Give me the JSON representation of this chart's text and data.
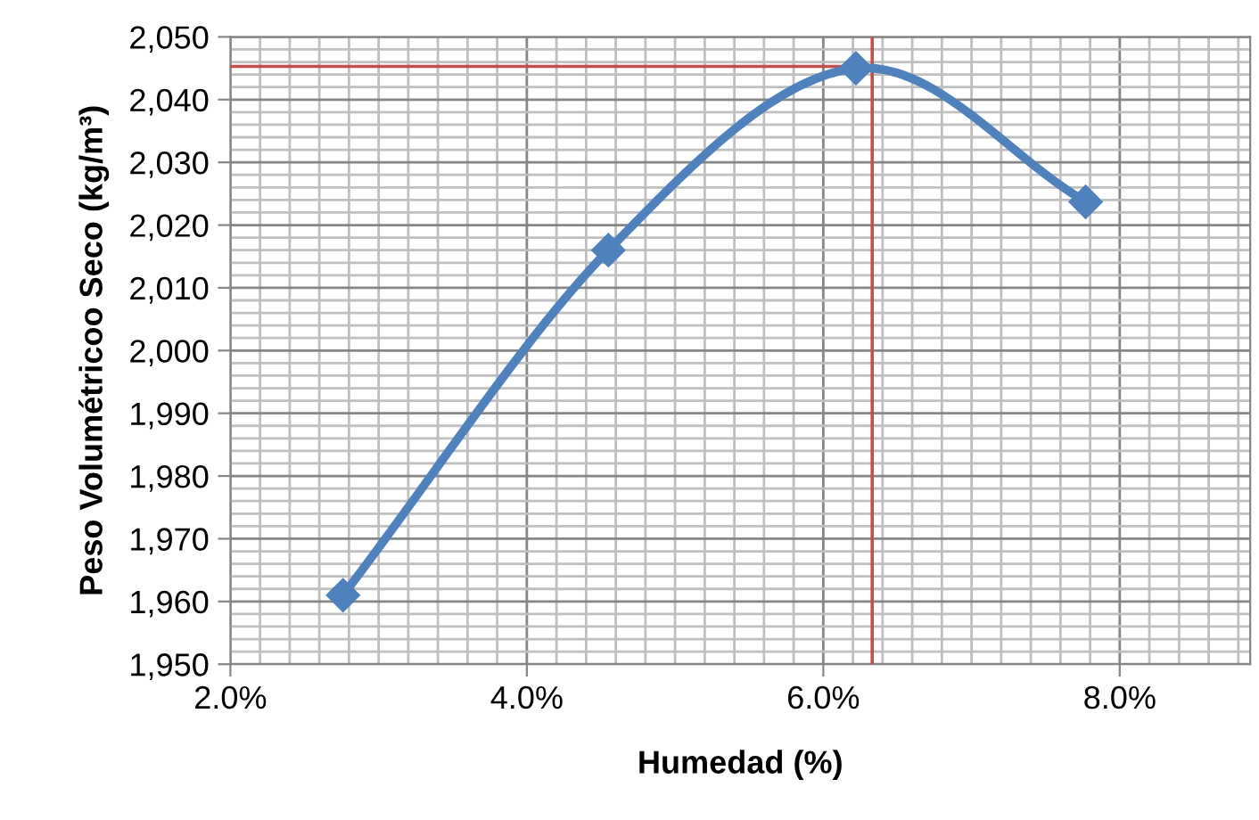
{
  "chart_data": {
    "type": "line",
    "xlabel": "Humedad (%)",
    "ylabel": "Peso Volumétricoo Seco (kg/m³)",
    "x": [
      0.0276,
      0.0455,
      0.0622,
      0.0777
    ],
    "series": [
      {
        "color": "#4f81bd",
        "values": [
          1961,
          2016,
          2045,
          2023.7
        ]
      }
    ],
    "marker": "diamond",
    "line_style": "solid",
    "xlim": [
      0.02,
      0.0888
    ],
    "ylim": [
      1950,
      2050
    ],
    "xticks": [
      {
        "value": 0.02,
        "label": "2.0%"
      },
      {
        "value": 0.022,
        "label": null
      },
      {
        "value": 0.024,
        "label": null
      },
      {
        "value": 0.026,
        "label": null
      },
      {
        "value": 0.028,
        "label": null
      },
      {
        "value": 0.03,
        "label": null
      },
      {
        "value": 0.032,
        "label": null
      },
      {
        "value": 0.034,
        "label": null
      },
      {
        "value": 0.036,
        "label": null
      },
      {
        "value": 0.038,
        "label": null
      },
      {
        "value": 0.04,
        "label": "4.0%"
      },
      {
        "value": 0.042,
        "label": null
      },
      {
        "value": 0.044,
        "label": null
      },
      {
        "value": 0.046,
        "label": null
      },
      {
        "value": 0.048,
        "label": null
      },
      {
        "value": 0.05,
        "label": null
      },
      {
        "value": 0.052,
        "label": null
      },
      {
        "value": 0.054,
        "label": null
      },
      {
        "value": 0.056,
        "label": null
      },
      {
        "value": 0.058,
        "label": null
      },
      {
        "value": 0.06,
        "label": "6.0%"
      },
      {
        "value": 0.062,
        "label": null
      },
      {
        "value": 0.064,
        "label": null
      },
      {
        "value": 0.066,
        "label": null
      },
      {
        "value": 0.068,
        "label": null
      },
      {
        "value": 0.07,
        "label": null
      },
      {
        "value": 0.072,
        "label": null
      },
      {
        "value": 0.074,
        "label": null
      },
      {
        "value": 0.076,
        "label": null
      },
      {
        "value": 0.078,
        "label": null
      },
      {
        "value": 0.08,
        "label": "8.0%"
      },
      {
        "value": 0.082,
        "label": null
      },
      {
        "value": 0.084,
        "label": null
      },
      {
        "value": 0.086,
        "label": null
      },
      {
        "value": 0.088,
        "label": null
      }
    ],
    "yticks": [
      {
        "value": 1950,
        "label": "1,950"
      },
      {
        "value": 1960,
        "label": "1,960"
      },
      {
        "value": 1970,
        "label": "1,970"
      },
      {
        "value": 1980,
        "label": "1,980"
      },
      {
        "value": 1990,
        "label": "1,990"
      },
      {
        "value": 2000,
        "label": "2,000"
      },
      {
        "value": 2010,
        "label": "2,010"
      },
      {
        "value": 2020,
        "label": "2,020"
      },
      {
        "value": 2030,
        "label": "2,030"
      },
      {
        "value": 2040,
        "label": "2,040"
      },
      {
        "value": 2050,
        "label": "2,050"
      },
      {
        "value": 1952,
        "label": null
      },
      {
        "value": 1954,
        "label": null
      },
      {
        "value": 1956,
        "label": null
      },
      {
        "value": 1958,
        "label": null
      },
      {
        "value": 1962,
        "label": null
      },
      {
        "value": 1964,
        "label": null
      },
      {
        "value": 1966,
        "label": null
      },
      {
        "value": 1968,
        "label": null
      },
      {
        "value": 1972,
        "label": null
      },
      {
        "value": 1974,
        "label": null
      },
      {
        "value": 1976,
        "label": null
      },
      {
        "value": 1978,
        "label": null
      },
      {
        "value": 1982,
        "label": null
      },
      {
        "value": 1984,
        "label": null
      },
      {
        "value": 1986,
        "label": null
      },
      {
        "value": 1988,
        "label": null
      },
      {
        "value": 1992,
        "label": null
      },
      {
        "value": 1994,
        "label": null
      },
      {
        "value": 1996,
        "label": null
      },
      {
        "value": 1998,
        "label": null
      },
      {
        "value": 2002,
        "label": null
      },
      {
        "value": 2004,
        "label": null
      },
      {
        "value": 2006,
        "label": null
      },
      {
        "value": 2008,
        "label": null
      },
      {
        "value": 2012,
        "label": null
      },
      {
        "value": 2014,
        "label": null
      },
      {
        "value": 2016,
        "label": null
      },
      {
        "value": 2018,
        "label": null
      },
      {
        "value": 2022,
        "label": null
      },
      {
        "value": 2024,
        "label": null
      },
      {
        "value": 2026,
        "label": null
      },
      {
        "value": 2028,
        "label": null
      },
      {
        "value": 2032,
        "label": null
      },
      {
        "value": 2034,
        "label": null
      },
      {
        "value": 2036,
        "label": null
      },
      {
        "value": 2038,
        "label": null
      },
      {
        "value": 2042,
        "label": null
      },
      {
        "value": 2044,
        "label": null
      },
      {
        "value": 2046,
        "label": null
      },
      {
        "value": 2048,
        "label": null
      }
    ],
    "grid": true,
    "legend": false,
    "ref_lines": [
      {
        "axis": "y",
        "value": 2045.3,
        "color": "#c0504d"
      },
      {
        "axis": "x",
        "value": 0.0633,
        "color": "#c0504d"
      }
    ]
  }
}
